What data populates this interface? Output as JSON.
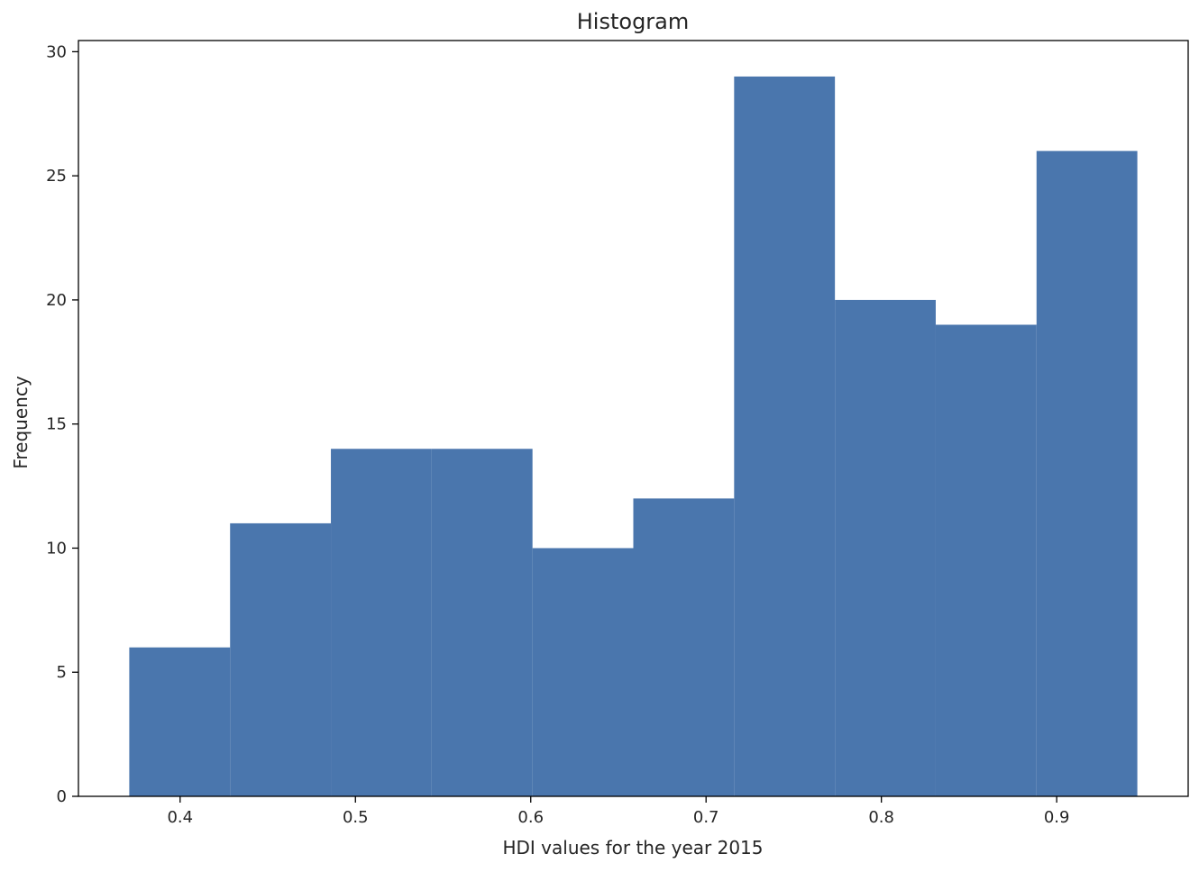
{
  "chart_data": {
    "type": "bar",
    "title": "Histogram",
    "xlabel": "HDI values for the year 2015",
    "ylabel": "Frequency",
    "bins": [
      {
        "x0": 0.371,
        "x1": 0.4285,
        "count": 6
      },
      {
        "x0": 0.4285,
        "x1": 0.486,
        "count": 11
      },
      {
        "x0": 0.486,
        "x1": 0.5435,
        "count": 14
      },
      {
        "x0": 0.5435,
        "x1": 0.601,
        "count": 14
      },
      {
        "x0": 0.601,
        "x1": 0.6585,
        "count": 10
      },
      {
        "x0": 0.6585,
        "x1": 0.716,
        "count": 12
      },
      {
        "x0": 0.716,
        "x1": 0.7735,
        "count": 29
      },
      {
        "x0": 0.7735,
        "x1": 0.831,
        "count": 20
      },
      {
        "x0": 0.831,
        "x1": 0.8885,
        "count": 19
      },
      {
        "x0": 0.8885,
        "x1": 0.946,
        "count": 26
      }
    ],
    "xlim": [
      0.342,
      0.975
    ],
    "ylim": [
      0,
      30.45
    ],
    "xticks": [
      "0.4",
      "0.5",
      "0.6",
      "0.7",
      "0.8",
      "0.9"
    ],
    "yticks": [
      "0",
      "5",
      "10",
      "15",
      "20",
      "25",
      "30"
    ],
    "grid": false,
    "bar_color": "#4a76ad"
  }
}
